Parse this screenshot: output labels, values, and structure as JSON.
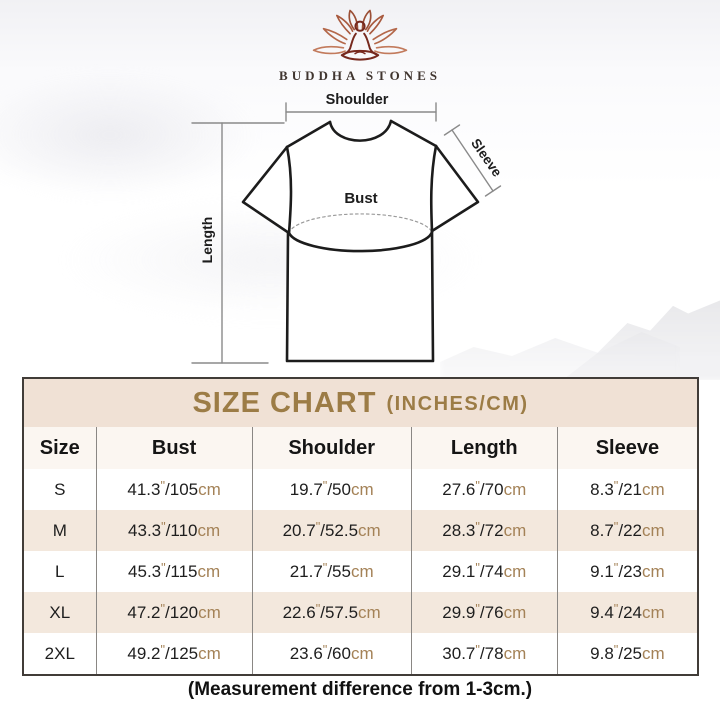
{
  "brand": {
    "name": "BUDDHA STONES",
    "logo_icon": "lotus-meditation-icon"
  },
  "diagram": {
    "labels": {
      "shoulder": "Shoulder",
      "sleeve": "Sleeve",
      "bust": "Bust",
      "length": "Length"
    }
  },
  "chart_data": {
    "type": "table",
    "title": "SIZE CHART",
    "title_suffix": "(INCHES/CM)",
    "columns": [
      "Size",
      "Bust",
      "Shoulder",
      "Length",
      "Sleeve"
    ],
    "units": {
      "inch_mark": "\"",
      "separator": "/",
      "cm_suffix": "cm"
    },
    "rows": [
      {
        "size": "S",
        "bust_in": "41.3",
        "bust_cm": "105",
        "shoulder_in": "19.7",
        "shoulder_cm": "50",
        "length_in": "27.6",
        "length_cm": "70",
        "sleeve_in": "8.3",
        "sleeve_cm": "21"
      },
      {
        "size": "M",
        "bust_in": "43.3",
        "bust_cm": "110",
        "shoulder_in": "20.7",
        "shoulder_cm": "52.5",
        "length_in": "28.3",
        "length_cm": "72",
        "sleeve_in": "8.7",
        "sleeve_cm": "22"
      },
      {
        "size": "L",
        "bust_in": "45.3",
        "bust_cm": "115",
        "shoulder_in": "21.7",
        "shoulder_cm": "55",
        "length_in": "29.1",
        "length_cm": "74",
        "sleeve_in": "9.1",
        "sleeve_cm": "23"
      },
      {
        "size": "XL",
        "bust_in": "47.2",
        "bust_cm": "120",
        "shoulder_in": "22.6",
        "shoulder_cm": "57.5",
        "length_in": "29.9",
        "length_cm": "76",
        "sleeve_in": "9.4",
        "sleeve_cm": "24"
      },
      {
        "size": "2XL",
        "bust_in": "49.2",
        "bust_cm": "125",
        "shoulder_in": "23.6",
        "shoulder_cm": "60",
        "length_in": "30.7",
        "length_cm": "78",
        "sleeve_in": "9.8",
        "sleeve_cm": "25"
      }
    ],
    "note": "(Measurement difference from 1-3cm.)"
  },
  "colors": {
    "accent_gold": "#9c7c46",
    "band_beige": "#f0e1d5",
    "row_beige": "#f3e8dd",
    "unit_tan": "#a48257",
    "table_border": "#413c38",
    "divider_gray": "#8a8784",
    "logo_dark": "#76291e",
    "logo_light": "#c27a5c"
  }
}
